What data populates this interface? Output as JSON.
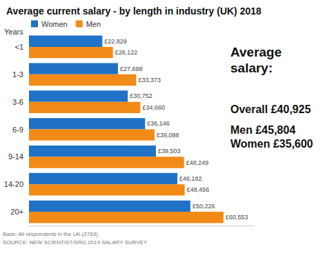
{
  "chart_data": {
    "type": "bar",
    "orientation": "horizontal",
    "title": "Average current salary - by length in industry (UK) 2018",
    "ylabel": "Years",
    "categories": [
      "<1",
      "1-3",
      "3-6",
      "6-9",
      "9-14",
      "14-20",
      "20+"
    ],
    "series": [
      {
        "name": "Women",
        "color": "#1f72c6",
        "values": [
          22829,
          27698,
          30752,
          36146,
          39503,
          46182,
          50226
        ],
        "value_labels": [
          "£22,829",
          "£27,698",
          "£30,752",
          "£36,146",
          "£39,503",
          "£46,182",
          "£50,226"
        ]
      },
      {
        "name": "Men",
        "color": "#f28a17",
        "values": [
          26122,
          33373,
          34660,
          39088,
          48249,
          48456,
          60553
        ],
        "value_labels": [
          "£26,122",
          "£33,373",
          "£34,660",
          "£39,088",
          "£48,249",
          "£48,456",
          "£60,553"
        ]
      }
    ],
    "xlim": [
      0,
      70000
    ],
    "data_labels": true,
    "tick_labels": "y",
    "grid": false,
    "legend": "upper left",
    "annotations": {
      "heading": "Average salary:",
      "items": [
        {
          "label": "Overall",
          "text": "£40,925"
        },
        {
          "label": "Men",
          "text": "£45,804"
        },
        {
          "label": "Women",
          "text": "£35,600"
        }
      ]
    },
    "notes": [
      "Base: All respondents in the UK (2763)",
      "SOURCE: NEW SCIENTIST/SRG 2019 SALARY SURVEY"
    ]
  }
}
